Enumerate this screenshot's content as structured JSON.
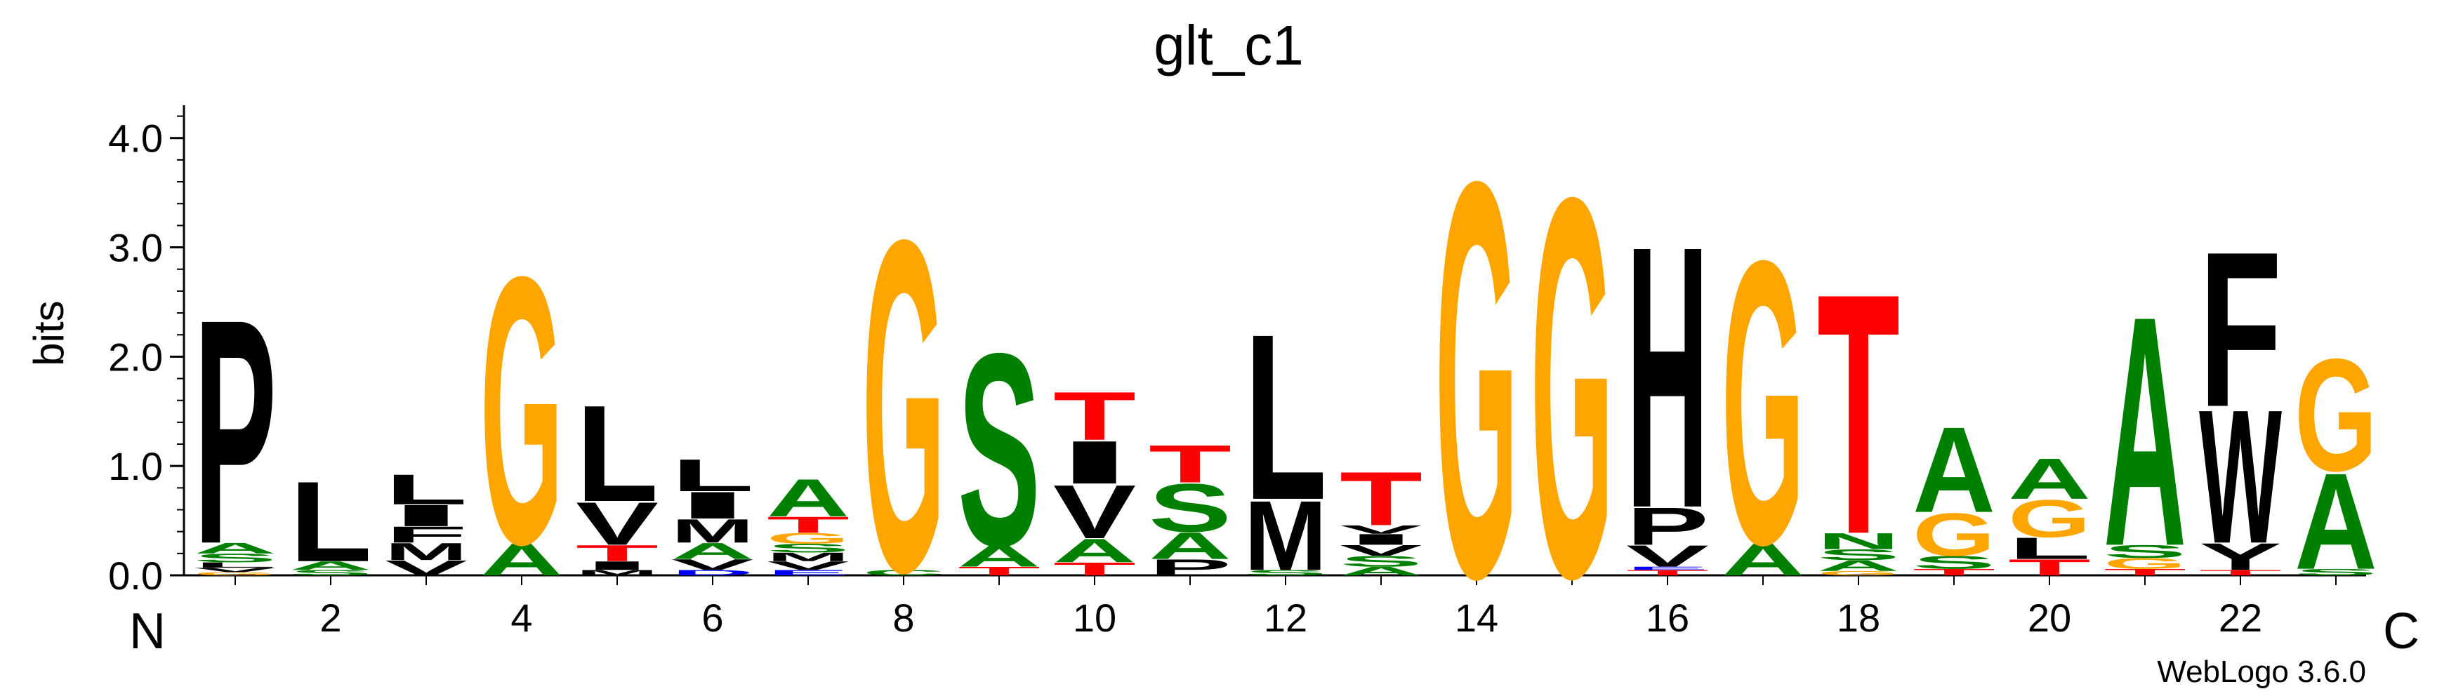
{
  "chart_data": {
    "type": "sequence-logo",
    "title": "glt_c1",
    "ylabel": "bits",
    "ylim": [
      0,
      4.3
    ],
    "yticks": [
      "0.0",
      "1.0",
      "2.0",
      "3.0",
      "4.0"
    ],
    "xticks": [
      "2",
      "4",
      "6",
      "8",
      "10",
      "12",
      "14",
      "16",
      "18",
      "20",
      "22"
    ],
    "n_label": "N",
    "c_label": "C",
    "footer": "WebLogo 3.6.0",
    "colors": {
      "hydrophobic": "#000000",
      "G": "#ffa500",
      "polar": "#008000",
      "T": "#ff0000",
      "charged": "#0000ff"
    },
    "positions": [
      {
        "pos": 1,
        "stack": [
          [
            "G",
            0.03
          ],
          [
            "V",
            0.04
          ],
          [
            "L",
            0.05
          ],
          [
            "S",
            0.08
          ],
          [
            "A",
            0.1
          ],
          [
            "P",
            2.1
          ]
        ]
      },
      {
        "pos": 2,
        "stack": [
          [
            "S",
            0.05
          ],
          [
            "A",
            0.08
          ],
          [
            "L",
            0.75
          ]
        ]
      },
      {
        "pos": 3,
        "stack": [
          [
            "V",
            0.14
          ],
          [
            "M",
            0.16
          ],
          [
            "F",
            0.15
          ],
          [
            "I",
            0.2
          ],
          [
            "L",
            0.28
          ]
        ]
      },
      {
        "pos": 4,
        "stack": [
          [
            "A",
            0.3
          ],
          [
            "G",
            2.5
          ]
        ]
      },
      {
        "pos": 5,
        "stack": [
          [
            "M",
            0.05
          ],
          [
            "I",
            0.08
          ],
          [
            "T",
            0.15
          ],
          [
            "V",
            0.4
          ],
          [
            "L",
            0.9
          ]
        ]
      },
      {
        "pos": 6,
        "stack": [
          [
            "D",
            0.05
          ],
          [
            "V",
            0.1
          ],
          [
            "A",
            0.15
          ],
          [
            "M",
            0.22
          ],
          [
            "I",
            0.25
          ],
          [
            "L",
            0.3
          ]
        ]
      },
      {
        "pos": 7,
        "stack": [
          [
            "E",
            0.05
          ],
          [
            "V",
            0.08
          ],
          [
            "M",
            0.08
          ],
          [
            "S",
            0.08
          ],
          [
            "G",
            0.1
          ],
          [
            "T",
            0.15
          ],
          [
            "A",
            0.35
          ]
        ]
      },
      {
        "pos": 8,
        "stack": [
          [
            "C",
            0.05
          ],
          [
            "G",
            3.1
          ]
        ]
      },
      {
        "pos": 9,
        "stack": [
          [
            "T",
            0.08
          ],
          [
            "A",
            0.2
          ],
          [
            "S",
            1.8
          ]
        ]
      },
      {
        "pos": 10,
        "stack": [
          [
            "T",
            0.12
          ],
          [
            "A",
            0.22
          ],
          [
            "V",
            0.5
          ],
          [
            "I",
            0.4
          ],
          [
            "T",
            0.45
          ]
        ]
      },
      {
        "pos": 11,
        "stack": [
          [
            "P",
            0.15
          ],
          [
            "A",
            0.25
          ],
          [
            "S",
            0.45
          ],
          [
            "T",
            0.35
          ]
        ]
      },
      {
        "pos": 12,
        "stack": [
          [
            "S",
            0.05
          ],
          [
            "M",
            0.65
          ],
          [
            "L",
            1.55
          ]
        ]
      },
      {
        "pos": 13,
        "stack": [
          [
            "A",
            0.08
          ],
          [
            "S",
            0.1
          ],
          [
            "V",
            0.1
          ],
          [
            "I",
            0.1
          ],
          [
            "V",
            0.08
          ],
          [
            "T",
            0.5
          ]
        ]
      },
      {
        "pos": 14,
        "stack": [
          [
            "G",
            3.7
          ]
        ]
      },
      {
        "pos": 15,
        "stack": [
          [
            "G",
            3.55
          ]
        ]
      },
      {
        "pos": 16,
        "stack": [
          [
            "T",
            0.05
          ],
          [
            "E",
            0.03
          ],
          [
            "V",
            0.2
          ],
          [
            "P",
            0.35
          ],
          [
            "H",
            2.45
          ]
        ]
      },
      {
        "pos": 17,
        "stack": [
          [
            "A",
            0.3
          ],
          [
            "G",
            2.65
          ]
        ]
      },
      {
        "pos": 18,
        "stack": [
          [
            "G",
            0.04
          ],
          [
            "A",
            0.1
          ],
          [
            "S",
            0.1
          ],
          [
            "N",
            0.15
          ],
          [
            "T",
            2.25
          ]
        ]
      },
      {
        "pos": 19,
        "stack": [
          [
            "T",
            0.06
          ],
          [
            "S",
            0.12
          ],
          [
            "G",
            0.4
          ],
          [
            "A",
            0.8
          ]
        ]
      },
      {
        "pos": 20,
        "stack": [
          [
            "T",
            0.15
          ],
          [
            "L",
            0.2
          ],
          [
            "G",
            0.35
          ],
          [
            "A",
            0.38
          ]
        ]
      },
      {
        "pos": 21,
        "stack": [
          [
            "T",
            0.06
          ],
          [
            "G",
            0.1
          ],
          [
            "S",
            0.12
          ],
          [
            "A",
            2.15
          ]
        ]
      },
      {
        "pos": 22,
        "stack": [
          [
            "T",
            0.05
          ],
          [
            "Y",
            0.25
          ],
          [
            "W",
            1.25
          ],
          [
            "F",
            1.45
          ]
        ]
      },
      {
        "pos": 23,
        "stack": [
          [
            "S",
            0.06
          ],
          [
            "A",
            0.9
          ],
          [
            "G",
            1.05
          ]
        ]
      }
    ]
  }
}
